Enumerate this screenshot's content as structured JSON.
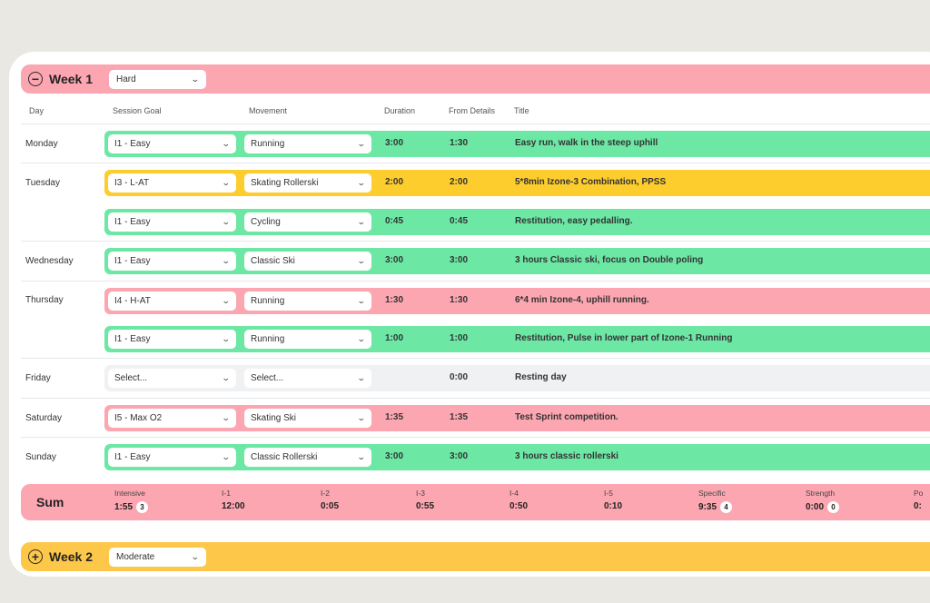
{
  "weeks": [
    {
      "title": "Week 1",
      "intensity": "Hard",
      "toggle": "−"
    },
    {
      "title": "Week 2",
      "intensity": "Moderate",
      "toggle": "+"
    }
  ],
  "columns": {
    "day": "Day",
    "goal": "Session Goal",
    "movement": "Movement",
    "duration": "Duration",
    "from": "From Details",
    "title": "Title"
  },
  "days": [
    "Monday",
    "Tuesday",
    "Wednesday",
    "Thursday",
    "Friday",
    "Saturday",
    "Sunday"
  ],
  "sessions": [
    {
      "goal": "I1 - Easy",
      "movement": "Running",
      "duration": "3:00",
      "from": "1:30",
      "title": "Easy run, walk in the steep uphill"
    },
    {
      "goal": "I3 - L-AT",
      "movement": "Skating Rollerski",
      "duration": "2:00",
      "from": "2:00",
      "title": "5*8min Izone-3 Combination, PPSS"
    },
    {
      "goal": "I1 - Easy",
      "movement": "Cycling",
      "duration": "0:45",
      "from": "0:45",
      "title": "Restitution, easy pedalling."
    },
    {
      "goal": "I1 - Easy",
      "movement": "Classic Ski",
      "duration": "3:00",
      "from": "3:00",
      "title": "3 hours Classic ski, focus on Double poling"
    },
    {
      "goal": "I4 - H-AT",
      "movement": "Running",
      "duration": "1:30",
      "from": "1:30",
      "title": "6*4 min Izone-4, uphill running."
    },
    {
      "goal": "I1 - Easy",
      "movement": "Running",
      "duration": "1:00",
      "from": "1:00",
      "title": "Restitution, Pulse in lower part of Izone-1 Running"
    },
    {
      "goal": "Select...",
      "movement": "Select...",
      "duration": "",
      "from": "0:00",
      "title": "Resting day"
    },
    {
      "goal": "I5 - Max O2",
      "movement": "Skating Ski",
      "duration": "1:35",
      "from": "1:35",
      "title": "Test Sprint competition."
    },
    {
      "goal": "I1 - Easy",
      "movement": "Classic Rollerski",
      "duration": "3:00",
      "from": "3:00",
      "title": "3 hours classic rollerski"
    }
  ],
  "sum": {
    "title": "Sum",
    "items": [
      {
        "label": "Intensive",
        "value": "1:55",
        "badge": "3"
      },
      {
        "label": "I-1",
        "value": "12:00",
        "badge": ""
      },
      {
        "label": "I-2",
        "value": "0:05",
        "badge": ""
      },
      {
        "label": "I-3",
        "value": "0:55",
        "badge": ""
      },
      {
        "label": "I-4",
        "value": "0:50",
        "badge": ""
      },
      {
        "label": "I-5",
        "value": "0:10",
        "badge": ""
      },
      {
        "label": "Specific",
        "value": "9:35",
        "badge": "4"
      },
      {
        "label": "Strength",
        "value": "0:00",
        "badge": "0"
      },
      {
        "label": "Po",
        "value": "0:",
        "badge": ""
      }
    ]
  },
  "colors": {
    "green": "#6ce7a4",
    "yellow": "#fdcd2e",
    "pink": "#fca6b1",
    "grey": "#f0f1f3",
    "week2": "#fdc84a"
  }
}
